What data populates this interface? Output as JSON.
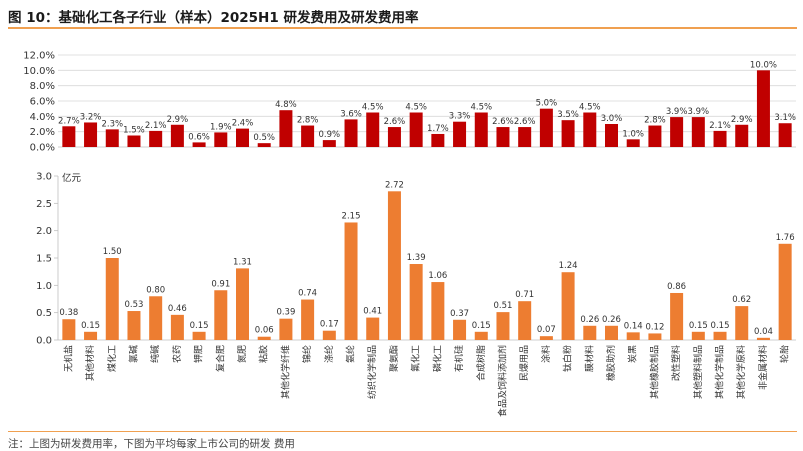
{
  "title": "图 10：基础化工各子行业（样本）2025H1 研发费用及研发费用率",
  "note": "注：上图为研发费用率，下图为平均每家上市公司的研发 费用",
  "colors": {
    "rate_bar": "#c00000",
    "expense_bar": "#ed7d31",
    "rule": "#f0a050"
  },
  "chart_data": [
    {
      "type": "bar",
      "categories": [
        "无机盐",
        "其他材料",
        "煤化工",
        "氯碱",
        "纯碱",
        "农药",
        "钾肥",
        "复合肥",
        "氮肥",
        "粘胶",
        "其他化学纤维",
        "锦纶",
        "涤纶",
        "氨纶",
        "纺织化学制品",
        "聚氨酯",
        "氟化工",
        "磷化工",
        "有机硅",
        "合成树脂",
        "食品及饲料添加剂",
        "民爆用品",
        "涂料",
        "钛白粉",
        "膜材料",
        "橡胶助剂",
        "炭黑",
        "其他橡胶制品",
        "改性塑料",
        "其他塑料制品",
        "其他化学制品",
        "其他化学原料",
        "非金属材料",
        "轮胎"
      ],
      "values": [
        2.7,
        3.2,
        2.3,
        1.5,
        2.1,
        2.9,
        0.6,
        1.9,
        2.4,
        0.5,
        4.8,
        2.8,
        0.9,
        3.6,
        4.5,
        2.6,
        4.5,
        1.7,
        3.3,
        4.5,
        2.6,
        2.6,
        5.0,
        3.5,
        4.5,
        3.0,
        1.0,
        2.8,
        3.9,
        3.9,
        2.1,
        2.9,
        10.0,
        3.1
      ],
      "value_labels": [
        "2.7%",
        "3.2%",
        "2.3%",
        "1.5%",
        "2.1%",
        "2.9%",
        "0.6%",
        "1.9%",
        "2.4%",
        "0.5%",
        "4.8%",
        "2.8%",
        "0.9%",
        "3.6%",
        "4.5%",
        "2.6%",
        "4.5%",
        "1.7%",
        "3.3%",
        "4.5%",
        "2.6%",
        "2.6%",
        "5.0%",
        "3.5%",
        "4.5%",
        "3.0%",
        "1.0%",
        "2.8%",
        "3.9%",
        "3.9%",
        "2.1%",
        "2.9%",
        "10.0%",
        "3.1%"
      ],
      "ylim": [
        0,
        12
      ],
      "yticks": [
        "0.0%",
        "2.0%",
        "4.0%",
        "6.0%",
        "8.0%",
        "10.0%",
        "12.0%"
      ],
      "grid": true
    },
    {
      "type": "bar",
      "categories": [
        "无机盐",
        "其他材料",
        "煤化工",
        "氯碱",
        "纯碱",
        "农药",
        "钾肥",
        "复合肥",
        "氮肥",
        "粘胶",
        "其他化学纤维",
        "锦纶",
        "涤纶",
        "氨纶",
        "纺织化学制品",
        "聚氨酯",
        "氟化工",
        "磷化工",
        "有机硅",
        "合成树脂",
        "食品及饲料添加剂",
        "民爆用品",
        "涂料",
        "钛白粉",
        "膜材料",
        "橡胶助剂",
        "炭黑",
        "其他橡胶制品",
        "改性塑料",
        "其他塑料制品",
        "其他化学制品",
        "其他化学原料",
        "非金属材料",
        "轮胎"
      ],
      "values": [
        0.38,
        0.15,
        1.5,
        0.53,
        0.8,
        0.46,
        0.15,
        0.91,
        1.31,
        0.06,
        0.39,
        0.74,
        0.17,
        2.15,
        0.41,
        2.72,
        1.39,
        1.06,
        0.37,
        0.15,
        0.51,
        0.71,
        0.07,
        1.24,
        0.26,
        0.26,
        0.14,
        0.12,
        0.86,
        0.15,
        0.15,
        0.62,
        0.04,
        1.76
      ],
      "value_labels": [
        "0.38",
        "0.15",
        "1.50",
        "0.53",
        "0.80",
        "0.46",
        "0.15",
        "0.91",
        "1.31",
        "0.06",
        "0.39",
        "0.74",
        "0.17",
        "2.15",
        "0.41",
        "2.72",
        "1.39",
        "1.06",
        "0.37",
        "0.15",
        "0.51",
        "0.71",
        "0.07",
        "1.24",
        "0.26",
        "0.26",
        "0.14",
        "0.12",
        "0.86",
        "0.15",
        "0.15",
        "0.62",
        "0.04",
        "1.76"
      ],
      "ylabel": "亿元",
      "ylim": [
        0,
        3.0
      ],
      "yticks": [
        "0.0",
        "0.5",
        "1.0",
        "1.5",
        "2.0",
        "2.5",
        "3.0"
      ],
      "grid": false
    }
  ]
}
